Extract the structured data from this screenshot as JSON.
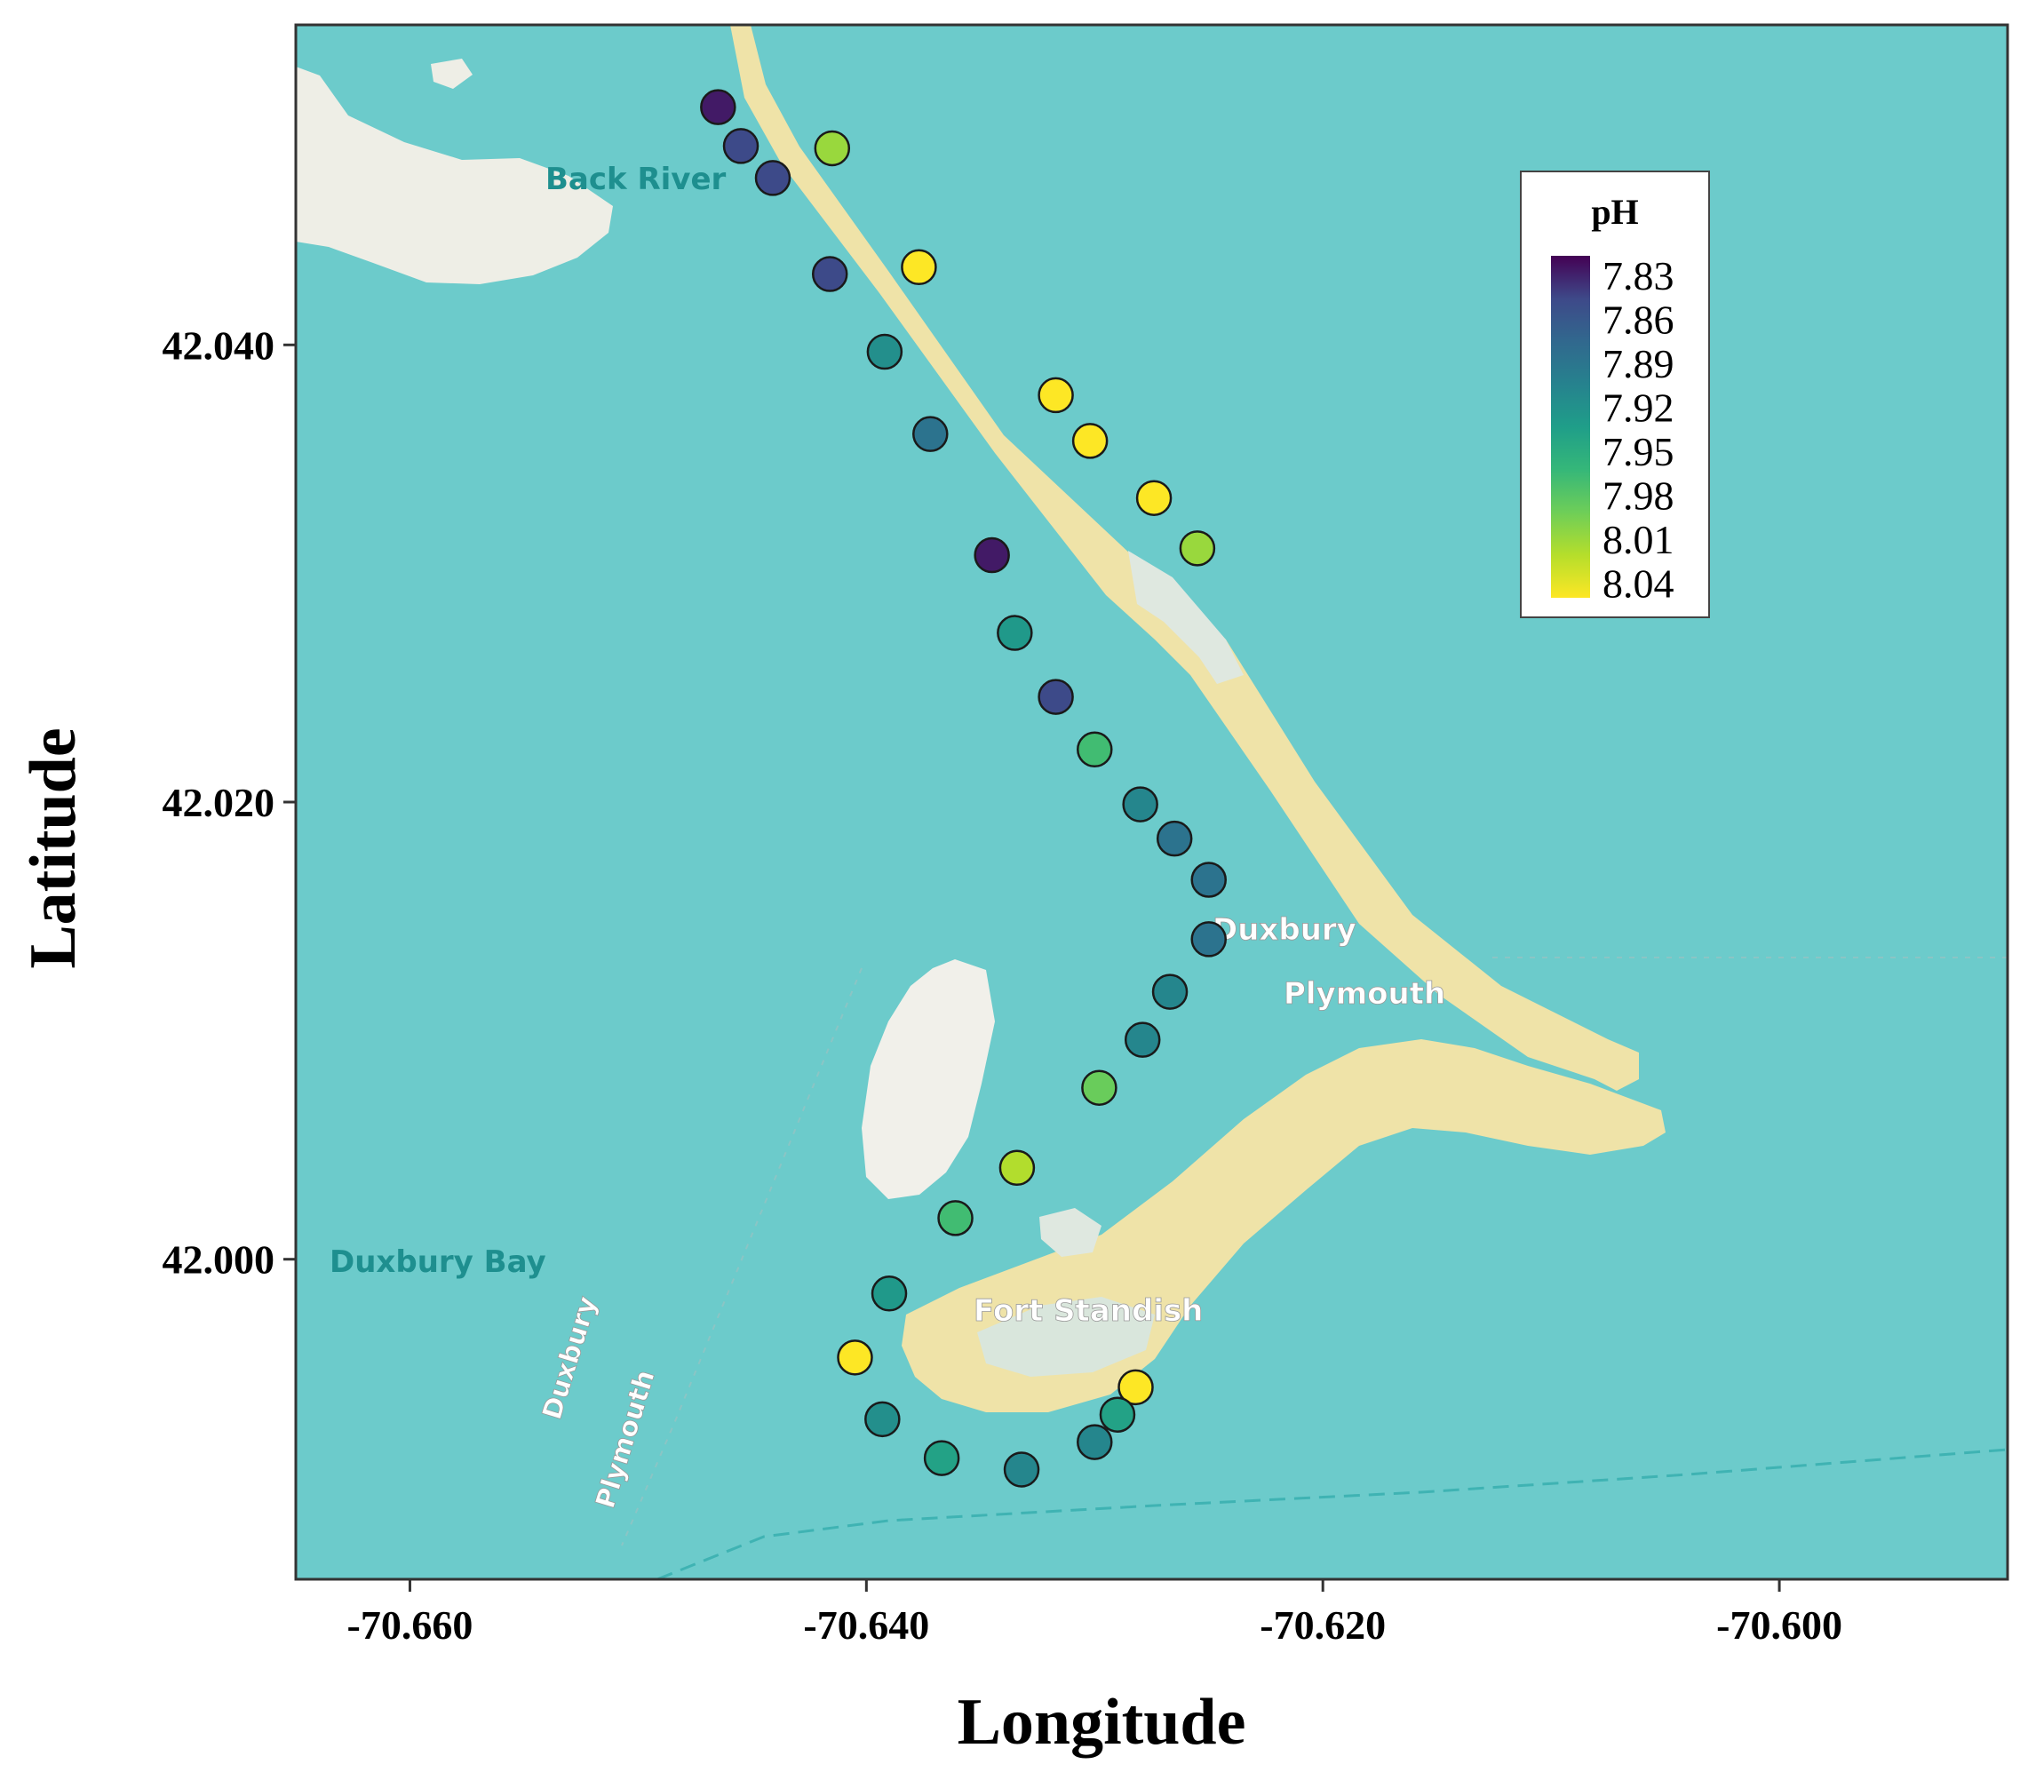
{
  "chart_data": {
    "type": "scatter",
    "xlabel": "Longitude",
    "ylabel": "Latitude",
    "xlim": [
      -70.665,
      -70.59
    ],
    "ylim": [
      41.986,
      42.054
    ],
    "xticks": [
      -70.66,
      -70.64,
      -70.62,
      -70.6
    ],
    "xtick_labels": [
      "-70.660",
      "-70.640",
      "-70.620",
      "-70.600"
    ],
    "yticks": [
      42.0,
      42.02,
      42.04
    ],
    "ytick_labels": [
      "42.000",
      "42.020",
      "42.040"
    ],
    "grid": false,
    "basemap": true,
    "legend": {
      "title": "pH",
      "placement": "top-right",
      "labels": [
        "7.83",
        "7.86",
        "7.89",
        "7.92",
        "7.95",
        "7.98",
        "8.01",
        "8.04"
      ],
      "range": [
        7.82,
        8.05
      ],
      "palette": "viridis"
    },
    "map_labels": [
      "Back River",
      "Duxbury",
      "Plymouth",
      "Duxbury Bay",
      "Fort Standish",
      "Duxbury",
      "Plymouth"
    ],
    "points": [
      {
        "lon": -70.6465,
        "lat": 42.0504,
        "ph": 7.83
      },
      {
        "lon": -70.6455,
        "lat": 42.0487,
        "ph": 7.85
      },
      {
        "lon": -70.6441,
        "lat": 42.0473,
        "ph": 7.85
      },
      {
        "lon": -70.6416,
        "lat": 42.0431,
        "ph": 7.85
      },
      {
        "lon": -70.6415,
        "lat": 42.0486,
        "ph": 8.01
      },
      {
        "lon": -70.6377,
        "lat": 42.0434,
        "ph": 8.05
      },
      {
        "lon": -70.6392,
        "lat": 42.0397,
        "ph": 7.92
      },
      {
        "lon": -70.6372,
        "lat": 42.0361,
        "ph": 7.89
      },
      {
        "lon": -70.6317,
        "lat": 42.0378,
        "ph": 8.05
      },
      {
        "lon": -70.6302,
        "lat": 42.0358,
        "ph": 8.05
      },
      {
        "lon": -70.6274,
        "lat": 42.0333,
        "ph": 8.05
      },
      {
        "lon": -70.6255,
        "lat": 42.0311,
        "ph": 8.01
      },
      {
        "lon": -70.6345,
        "lat": 42.0308,
        "ph": 7.83
      },
      {
        "lon": -70.6335,
        "lat": 42.0274,
        "ph": 7.93
      },
      {
        "lon": -70.6317,
        "lat": 42.0246,
        "ph": 7.85
      },
      {
        "lon": -70.63,
        "lat": 42.0223,
        "ph": 7.97
      },
      {
        "lon": -70.628,
        "lat": 42.0199,
        "ph": 7.91
      },
      {
        "lon": -70.6265,
        "lat": 42.0184,
        "ph": 7.89
      },
      {
        "lon": -70.625,
        "lat": 42.0166,
        "ph": 7.89
      },
      {
        "lon": -70.625,
        "lat": 42.014,
        "ph": 7.89
      },
      {
        "lon": -70.6267,
        "lat": 42.0117,
        "ph": 7.91
      },
      {
        "lon": -70.6279,
        "lat": 42.0096,
        "ph": 7.91
      },
      {
        "lon": -70.6298,
        "lat": 42.0075,
        "ph": 7.99
      },
      {
        "lon": -70.6334,
        "lat": 42.004,
        "ph": 8.02
      },
      {
        "lon": -70.6361,
        "lat": 42.0018,
        "ph": 7.97
      },
      {
        "lon": -70.639,
        "lat": 41.9985,
        "ph": 7.93
      },
      {
        "lon": -70.6405,
        "lat": 41.9957,
        "ph": 8.05
      },
      {
        "lon": -70.6282,
        "lat": 41.9944,
        "ph": 8.05
      },
      {
        "lon": -70.629,
        "lat": 41.9932,
        "ph": 7.94
      },
      {
        "lon": -70.63,
        "lat": 41.992,
        "ph": 7.91
      },
      {
        "lon": -70.6393,
        "lat": 41.993,
        "ph": 7.92
      },
      {
        "lon": -70.6367,
        "lat": 41.9913,
        "ph": 7.94
      },
      {
        "lon": -70.6332,
        "lat": 41.9908,
        "ph": 7.91
      }
    ]
  }
}
